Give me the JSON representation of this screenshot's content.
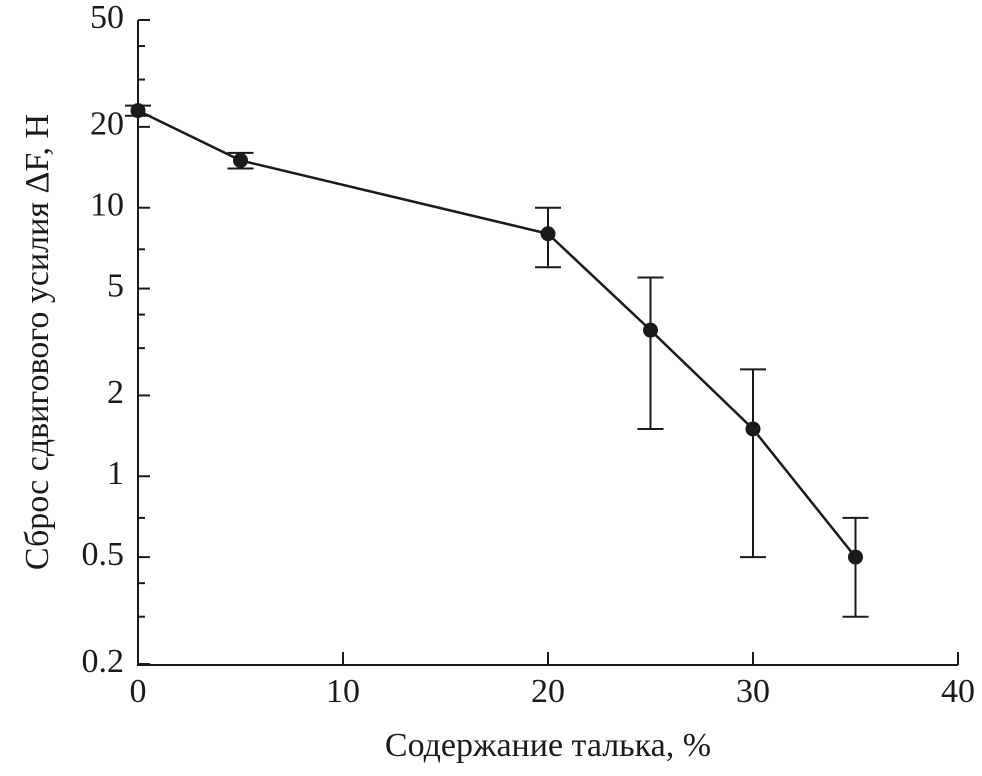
{
  "chart_data": {
    "type": "line",
    "y_label": "Сброс сдвигового усилия ΔF, Н",
    "x_label": "Содержание талька, %",
    "x": [
      0,
      5,
      20,
      25,
      30,
      35
    ],
    "series": [
      {
        "color": "#1a1a1a",
        "values": [
          23,
          15,
          8,
          3.5,
          1.5,
          0.5
        ],
        "errors": [
          1,
          1,
          2,
          2,
          1,
          0.2
        ]
      }
    ],
    "xlim": [
      0,
      40
    ],
    "xticks": [
      0,
      10,
      20,
      30,
      40
    ],
    "ylim": [
      0.2,
      50
    ],
    "yticks": [
      0.2,
      0.5,
      1,
      2,
      5,
      10,
      20,
      50
    ],
    "yminorticks": [
      0.3,
      0.4,
      0.7,
      3,
      4,
      7,
      30,
      40
    ],
    "ylog": true,
    "grid": false
  }
}
